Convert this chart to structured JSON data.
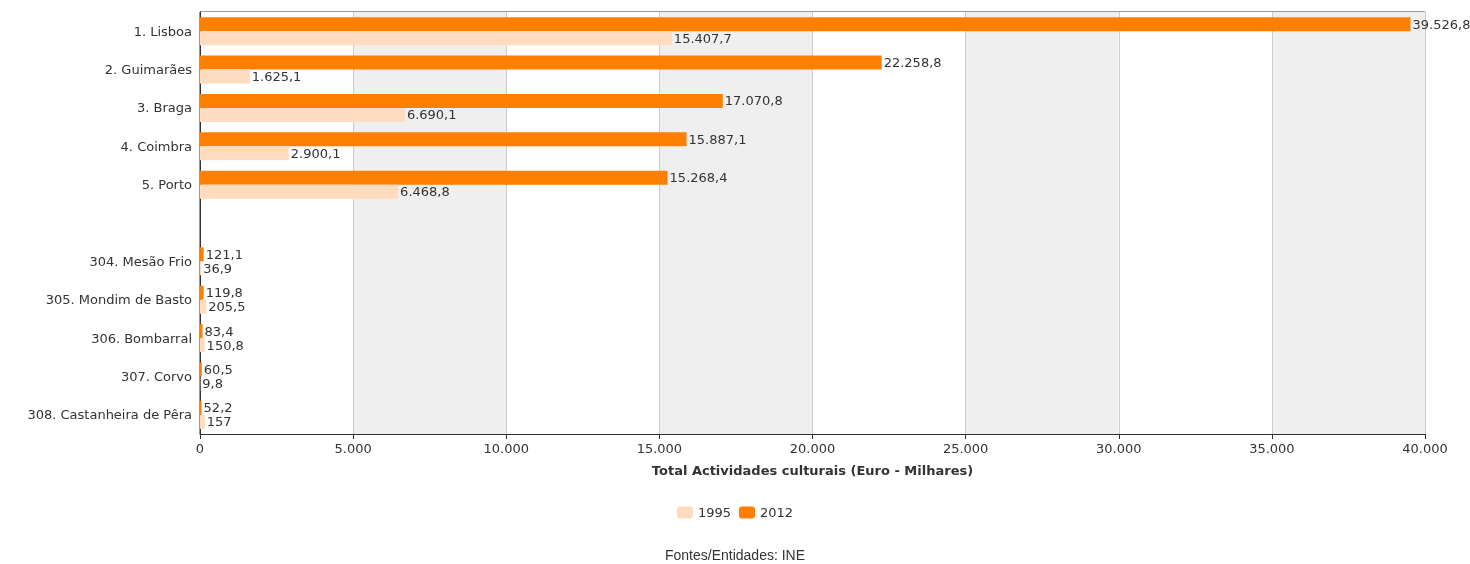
{
  "chart_data": {
    "type": "bar",
    "orientation": "horizontal",
    "xlabel": "Total Actividades culturais (Euro - Milhares)",
    "categories": [
      "1. Lisboa",
      "2. Guimarães",
      "3. Braga",
      "4. Coimbra",
      "5. Porto",
      null,
      "304. Mesão Frio",
      "305. Mondim de Basto",
      "306. Bombarral",
      "307. Corvo",
      "308. Castanheira de Pêra"
    ],
    "series": [
      {
        "name": "1995",
        "color": "#ffdcc0",
        "values": [
          15407.7,
          1625.1,
          6690.1,
          2900.1,
          6468.8,
          null,
          36.9,
          205.5,
          150.8,
          9.8,
          157
        ],
        "value_labels": [
          "15.407,7",
          "1.625,1",
          "6.690,1",
          "2.900,1",
          "6.468,8",
          null,
          "36,9",
          "205,5",
          "150,8",
          "9,8",
          "157"
        ]
      },
      {
        "name": "2012",
        "color": "#ff8000",
        "values": [
          39526.8,
          22258.8,
          17070.8,
          15887.1,
          15268.4,
          null,
          121.1,
          119.8,
          83.4,
          60.5,
          52.2
        ],
        "value_labels": [
          "39.526,8",
          "22.258,8",
          "17.070,8",
          "15.887,1",
          "15.268,4",
          null,
          "121,1",
          "119,8",
          "83,4",
          "60,5",
          "52,2"
        ]
      }
    ],
    "xlim": [
      0,
      40000
    ],
    "xticks": [
      0,
      {
        "value": 5000,
        "label": "5.000"
      },
      {
        "value": 10000,
        "label": "10.000"
      },
      {
        "value": 15000,
        "label": "15.000"
      },
      {
        "value": 20000,
        "label": "20.000"
      },
      {
        "value": 25000,
        "label": "25.000"
      },
      {
        "value": 30000,
        "label": "30.000"
      },
      {
        "value": 35000,
        "label": "35.000"
      },
      {
        "value": 40000,
        "label": "40.000"
      }
    ],
    "grid": "x",
    "legend": "bottom",
    "annotations": [
      "Fontes/Entidades: INE"
    ]
  }
}
